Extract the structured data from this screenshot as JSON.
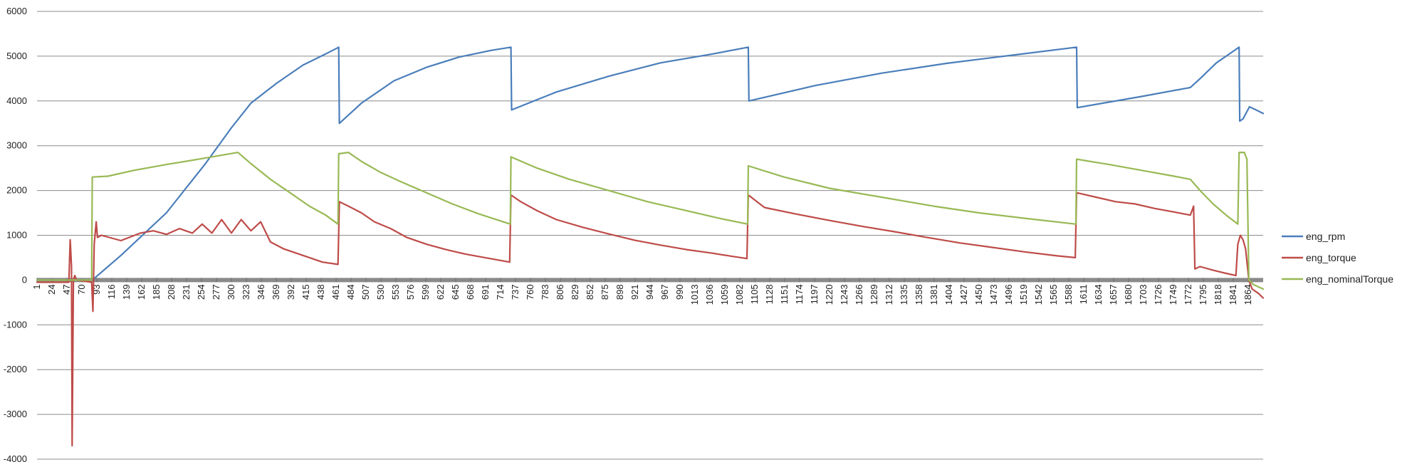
{
  "chart_data": {
    "type": "line",
    "title": "",
    "xlabel": "",
    "ylabel": "",
    "ylim": [
      -4000,
      6000
    ],
    "yticks": [
      -4000,
      -3000,
      -2000,
      -1000,
      0,
      1000,
      2000,
      3000,
      4000,
      5000,
      6000
    ],
    "xlim": [
      1,
      1887
    ],
    "x_tick_labels": [
      1,
      24,
      47,
      70,
      93,
      116,
      139,
      162,
      185,
      208,
      231,
      254,
      277,
      300,
      323,
      346,
      369,
      392,
      415,
      438,
      461,
      484,
      507,
      530,
      553,
      576,
      599,
      622,
      645,
      668,
      691,
      714,
      737,
      760,
      783,
      806,
      829,
      852,
      875,
      898,
      921,
      944,
      967,
      990,
      1013,
      1036,
      1059,
      1082,
      1105,
      1128,
      1151,
      1174,
      1197,
      1220,
      1243,
      1266,
      1289,
      1312,
      1335,
      1358,
      1381,
      1404,
      1427,
      1450,
      1473,
      1496,
      1519,
      1542,
      1565,
      1588,
      1611,
      1634,
      1657,
      1680,
      1703,
      1726,
      1749,
      1772,
      1795,
      1818,
      1841,
      1864
    ],
    "grid": true,
    "legend_position": "right",
    "series": [
      {
        "name": "eng_rpm",
        "color": "#4a7ebb",
        "points": [
          [
            1,
            0
          ],
          [
            85,
            0
          ],
          [
            90,
            50
          ],
          [
            130,
            550
          ],
          [
            200,
            1500
          ],
          [
            260,
            2600
          ],
          [
            300,
            3400
          ],
          [
            330,
            3950
          ],
          [
            370,
            4400
          ],
          [
            410,
            4800
          ],
          [
            445,
            5050
          ],
          [
            465,
            5200
          ],
          [
            466,
            3500
          ],
          [
            500,
            3950
          ],
          [
            550,
            4450
          ],
          [
            600,
            4750
          ],
          [
            650,
            4980
          ],
          [
            700,
            5130
          ],
          [
            730,
            5200
          ],
          [
            731,
            3800
          ],
          [
            800,
            4200
          ],
          [
            880,
            4550
          ],
          [
            960,
            4850
          ],
          [
            1040,
            5050
          ],
          [
            1095,
            5200
          ],
          [
            1096,
            4000
          ],
          [
            1200,
            4350
          ],
          [
            1300,
            4620
          ],
          [
            1400,
            4840
          ],
          [
            1500,
            5020
          ],
          [
            1600,
            5200
          ],
          [
            1601,
            3850
          ],
          [
            1700,
            4100
          ],
          [
            1775,
            4300
          ],
          [
            1790,
            4500
          ],
          [
            1815,
            4850
          ],
          [
            1840,
            5100
          ],
          [
            1850,
            5200
          ],
          [
            1851,
            3550
          ],
          [
            1856,
            3600
          ],
          [
            1866,
            3870
          ],
          [
            1876,
            3800
          ],
          [
            1887,
            3720
          ]
        ]
      },
      {
        "name": "eng_torque",
        "color": "#be4b48",
        "points": [
          [
            1,
            -50
          ],
          [
            50,
            -50
          ],
          [
            52,
            900
          ],
          [
            54,
            300
          ],
          [
            55,
            -3700
          ],
          [
            57,
            0
          ],
          [
            59,
            100
          ],
          [
            62,
            0
          ],
          [
            85,
            -50
          ],
          [
            87,
            -700
          ],
          [
            89,
            800
          ],
          [
            92,
            1300
          ],
          [
            94,
            950
          ],
          [
            100,
            1000
          ],
          [
            130,
            880
          ],
          [
            160,
            1050
          ],
          [
            180,
            1100
          ],
          [
            200,
            1020
          ],
          [
            220,
            1150
          ],
          [
            240,
            1050
          ],
          [
            255,
            1250
          ],
          [
            270,
            1050
          ],
          [
            285,
            1350
          ],
          [
            300,
            1050
          ],
          [
            315,
            1350
          ],
          [
            330,
            1100
          ],
          [
            345,
            1300
          ],
          [
            360,
            850
          ],
          [
            380,
            700
          ],
          [
            400,
            600
          ],
          [
            420,
            500
          ],
          [
            440,
            400
          ],
          [
            464,
            350
          ],
          [
            466,
            1750
          ],
          [
            480,
            1650
          ],
          [
            500,
            1500
          ],
          [
            520,
            1300
          ],
          [
            545,
            1150
          ],
          [
            570,
            950
          ],
          [
            600,
            800
          ],
          [
            630,
            680
          ],
          [
            660,
            580
          ],
          [
            690,
            500
          ],
          [
            728,
            400
          ],
          [
            730,
            1900
          ],
          [
            745,
            1750
          ],
          [
            770,
            1550
          ],
          [
            800,
            1350
          ],
          [
            840,
            1180
          ],
          [
            880,
            1030
          ],
          [
            920,
            890
          ],
          [
            960,
            780
          ],
          [
            1000,
            680
          ],
          [
            1040,
            600
          ],
          [
            1070,
            530
          ],
          [
            1093,
            480
          ],
          [
            1095,
            1900
          ],
          [
            1120,
            1620
          ],
          [
            1170,
            1470
          ],
          [
            1220,
            1330
          ],
          [
            1270,
            1200
          ],
          [
            1320,
            1080
          ],
          [
            1370,
            950
          ],
          [
            1420,
            830
          ],
          [
            1470,
            730
          ],
          [
            1520,
            630
          ],
          [
            1570,
            540
          ],
          [
            1598,
            500
          ],
          [
            1600,
            1950
          ],
          [
            1630,
            1850
          ],
          [
            1660,
            1750
          ],
          [
            1690,
            1700
          ],
          [
            1720,
            1600
          ],
          [
            1750,
            1520
          ],
          [
            1775,
            1450
          ],
          [
            1780,
            1650
          ],
          [
            1782,
            250
          ],
          [
            1790,
            300
          ],
          [
            1810,
            220
          ],
          [
            1830,
            150
          ],
          [
            1845,
            100
          ],
          [
            1848,
            800
          ],
          [
            1852,
            1000
          ],
          [
            1856,
            900
          ],
          [
            1860,
            700
          ],
          [
            1865,
            0
          ],
          [
            1870,
            -200
          ],
          [
            1880,
            -300
          ],
          [
            1887,
            -400
          ]
        ]
      },
      {
        "name": "eng_nominalTorque",
        "color": "#98b954",
        "points": [
          [
            1,
            0
          ],
          [
            85,
            0
          ],
          [
            86,
            2300
          ],
          [
            110,
            2320
          ],
          [
            150,
            2450
          ],
          [
            200,
            2580
          ],
          [
            250,
            2700
          ],
          [
            310,
            2850
          ],
          [
            330,
            2600
          ],
          [
            360,
            2250
          ],
          [
            390,
            1950
          ],
          [
            420,
            1650
          ],
          [
            445,
            1450
          ],
          [
            464,
            1250
          ],
          [
            465,
            2820
          ],
          [
            480,
            2850
          ],
          [
            500,
            2650
          ],
          [
            530,
            2400
          ],
          [
            560,
            2200
          ],
          [
            600,
            1950
          ],
          [
            640,
            1700
          ],
          [
            680,
            1480
          ],
          [
            729,
            1250
          ],
          [
            730,
            2750
          ],
          [
            770,
            2500
          ],
          [
            820,
            2250
          ],
          [
            880,
            2000
          ],
          [
            940,
            1750
          ],
          [
            1000,
            1550
          ],
          [
            1050,
            1380
          ],
          [
            1094,
            1250
          ],
          [
            1095,
            2550
          ],
          [
            1150,
            2300
          ],
          [
            1220,
            2050
          ],
          [
            1300,
            1850
          ],
          [
            1380,
            1650
          ],
          [
            1450,
            1500
          ],
          [
            1520,
            1380
          ],
          [
            1599,
            1250
          ],
          [
            1600,
            2700
          ],
          [
            1650,
            2580
          ],
          [
            1700,
            2450
          ],
          [
            1750,
            2320
          ],
          [
            1775,
            2250
          ],
          [
            1790,
            2000
          ],
          [
            1810,
            1700
          ],
          [
            1830,
            1450
          ],
          [
            1848,
            1250
          ],
          [
            1850,
            2850
          ],
          [
            1858,
            2850
          ],
          [
            1862,
            2700
          ],
          [
            1865,
            0
          ],
          [
            1872,
            -100
          ],
          [
            1887,
            -200
          ]
        ]
      }
    ]
  }
}
